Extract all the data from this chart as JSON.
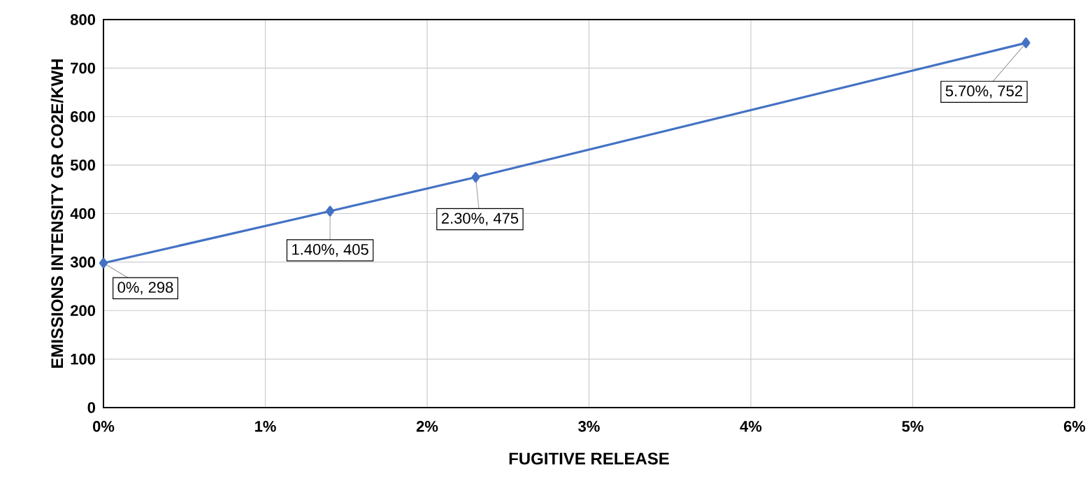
{
  "chart_data": {
    "type": "line",
    "xlabel": "FUGITIVE RELEASE",
    "ylabel": "EMISSIONS INTENSITY GR CO2E/KWH",
    "x": [
      0,
      1.4,
      2.3,
      5.7
    ],
    "series": [
      {
        "color": "#4472c4",
        "values": [
          298,
          405,
          475,
          752
        ],
        "value_labels": [
          "0%, 298",
          "1.40%, 405",
          "2.30%, 475",
          "5.70%, 752"
        ]
      }
    ],
    "xlim": [
      0,
      6
    ],
    "xticks": [
      {
        "value": 0,
        "label": "0%"
      },
      {
        "value": 1,
        "label": "1%"
      },
      {
        "value": 2,
        "label": "2%"
      },
      {
        "value": 3,
        "label": "3%"
      },
      {
        "value": 4,
        "label": "4%"
      },
      {
        "value": 5,
        "label": "5%"
      },
      {
        "value": 6,
        "label": "6%"
      }
    ],
    "ylim": [
      0,
      800
    ],
    "yticks": [
      0,
      100,
      200,
      300,
      400,
      500,
      600,
      700,
      800
    ],
    "grid": true,
    "marker": "diamond",
    "line_style": "solid"
  }
}
